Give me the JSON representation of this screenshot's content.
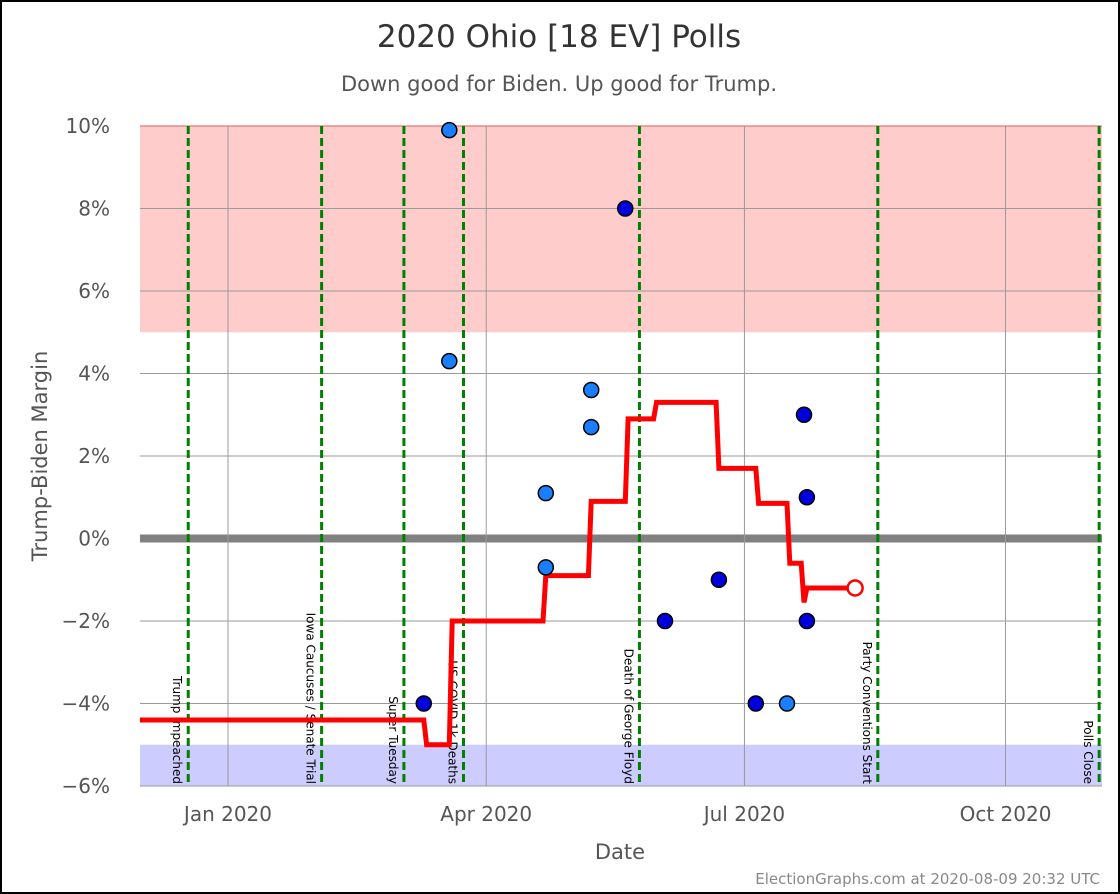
{
  "chart_data": {
    "type": "scatter",
    "title": "2020 Ohio [18 EV] Polls",
    "subtitle": "Down good for Biden. Up good for Trump.",
    "xlabel": "Date",
    "ylabel": "Trump-Biden Margin",
    "xlim": [
      "2019-12-01",
      "2020-11-04"
    ],
    "ylim": [
      -6,
      10
    ],
    "y_ticks": [
      {
        "value": 10,
        "label": "10%"
      },
      {
        "value": 8,
        "label": "8%"
      },
      {
        "value": 6,
        "label": "6%"
      },
      {
        "value": 4,
        "label": "4%"
      },
      {
        "value": 2,
        "label": "2%"
      },
      {
        "value": 0,
        "label": "0%"
      },
      {
        "value": -2,
        "label": "−2%"
      },
      {
        "value": -4,
        "label": "−4%"
      },
      {
        "value": -6,
        "label": "−6%"
      }
    ],
    "x_ticks": [
      {
        "date": "2020-01-01",
        "label": "Jan 2020"
      },
      {
        "date": "2020-04-01",
        "label": "Apr 2020"
      },
      {
        "date": "2020-07-01",
        "label": "Jul 2020"
      },
      {
        "date": "2020-10-01",
        "label": "Oct 2020"
      }
    ],
    "bands": [
      {
        "from": 5,
        "to": 10,
        "color": "#ffcccc"
      },
      {
        "from": -6,
        "to": -5,
        "color": "#ccccff"
      }
    ],
    "grid": true,
    "events": [
      {
        "date": "2019-12-18",
        "label": "Trump Impeached"
      },
      {
        "date": "2020-02-03",
        "label": "Iowa Caucuses / Senate Trial"
      },
      {
        "date": "2020-03-03",
        "label": "Super Tuesday"
      },
      {
        "date": "2020-03-24",
        "label": "US COVID 1k Deaths"
      },
      {
        "date": "2020-05-25",
        "label": "Death of George Floyd"
      },
      {
        "date": "2020-08-17",
        "label": "Party Conventions Start"
      },
      {
        "date": "2020-11-03",
        "label": "Polls Close"
      }
    ],
    "polls": [
      {
        "date": "2020-03-10",
        "margin": -4,
        "color": "#0000dd"
      },
      {
        "date": "2020-03-19",
        "margin": 9.9,
        "color": "#1a7fff"
      },
      {
        "date": "2020-03-19",
        "margin": 4.3,
        "color": "#1a7fff"
      },
      {
        "date": "2020-04-22",
        "margin": 1.1,
        "color": "#1a7fff"
      },
      {
        "date": "2020-04-22",
        "margin": -0.7,
        "color": "#1a7fff"
      },
      {
        "date": "2020-05-08",
        "margin": 3.6,
        "color": "#1a7fff"
      },
      {
        "date": "2020-05-08",
        "margin": 2.7,
        "color": "#1a7fff"
      },
      {
        "date": "2020-05-20",
        "margin": 8,
        "color": "#0000dd"
      },
      {
        "date": "2020-06-03",
        "margin": -2,
        "color": "#0000dd"
      },
      {
        "date": "2020-06-22",
        "margin": -1,
        "color": "#0000dd"
      },
      {
        "date": "2020-07-05",
        "margin": -4,
        "color": "#0000dd"
      },
      {
        "date": "2020-07-16",
        "margin": -4,
        "color": "#1a7fff"
      },
      {
        "date": "2020-07-22",
        "margin": 3,
        "color": "#0000dd"
      },
      {
        "date": "2020-07-23",
        "margin": 1,
        "color": "#0000dd"
      },
      {
        "date": "2020-07-23",
        "margin": -2,
        "color": "#0000dd"
      }
    ],
    "average": {
      "color": "#ff0000",
      "points": [
        {
          "date": "2019-12-01",
          "margin": -4.4
        },
        {
          "date": "2020-03-10",
          "margin": -4.4
        },
        {
          "date": "2020-03-11",
          "margin": -5.0
        },
        {
          "date": "2020-03-19",
          "margin": -5.0
        },
        {
          "date": "2020-03-20",
          "margin": -2.0
        },
        {
          "date": "2020-04-21",
          "margin": -2.0
        },
        {
          "date": "2020-04-22",
          "margin": -0.9
        },
        {
          "date": "2020-05-07",
          "margin": -0.9
        },
        {
          "date": "2020-05-08",
          "margin": 0.9
        },
        {
          "date": "2020-05-20",
          "margin": 0.9
        },
        {
          "date": "2020-05-21",
          "margin": 2.9
        },
        {
          "date": "2020-05-30",
          "margin": 2.9
        },
        {
          "date": "2020-05-31",
          "margin": 3.3
        },
        {
          "date": "2020-06-21",
          "margin": 3.3
        },
        {
          "date": "2020-06-22",
          "margin": 1.7
        },
        {
          "date": "2020-07-05",
          "margin": 1.7
        },
        {
          "date": "2020-07-06",
          "margin": 0.85
        },
        {
          "date": "2020-07-16",
          "margin": 0.85
        },
        {
          "date": "2020-07-17",
          "margin": -0.6
        },
        {
          "date": "2020-07-21",
          "margin": -0.6
        },
        {
          "date": "2020-07-22",
          "margin": -1.55
        },
        {
          "date": "2020-07-23",
          "margin": -1.2
        },
        {
          "date": "2020-08-09",
          "margin": -1.2
        }
      ]
    }
  },
  "footer": "ElectionGraphs.com at 2020-08-09 20:32 UTC"
}
